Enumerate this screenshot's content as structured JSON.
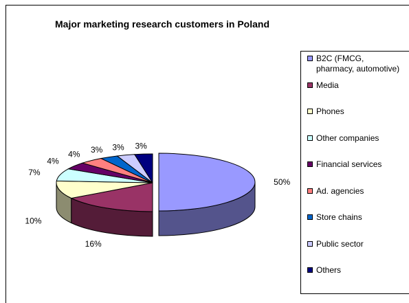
{
  "chart_data": {
    "type": "pie",
    "title": "Major marketing research customers in Poland",
    "slices": [
      {
        "label": "B2C (FMCG, pharmacy, automotive)",
        "label_lines": [
          "B2C (FMCG,",
          "pharmacy, automotive)"
        ],
        "value": 50,
        "value_label": "50%",
        "color": "#9999ff"
      },
      {
        "label": "Media",
        "value": 16,
        "value_label": "16%",
        "color": "#993366"
      },
      {
        "label": "Phones",
        "value": 10,
        "value_label": "10%",
        "color": "#ffffcc"
      },
      {
        "label": "Other companies",
        "value": 7,
        "value_label": "7%",
        "color": "#ccffff"
      },
      {
        "label": "Financial services",
        "value": 4,
        "value_label": "4%",
        "color": "#660066"
      },
      {
        "label": "Ad. agencies",
        "value": 4,
        "value_label": "4%",
        "color": "#ff8080"
      },
      {
        "label": "Store chains",
        "value": 3,
        "value_label": "3%",
        "color": "#0066cc"
      },
      {
        "label": "Public sector",
        "value": 3,
        "value_label": "3%",
        "color": "#ccccff"
      },
      {
        "label": "Others",
        "value": 3,
        "value_label": "3%",
        "color": "#000080"
      }
    ],
    "legend_position": "right",
    "exploded_slice": "B2C (FMCG, pharmacy, automotive)",
    "style": "3d"
  }
}
